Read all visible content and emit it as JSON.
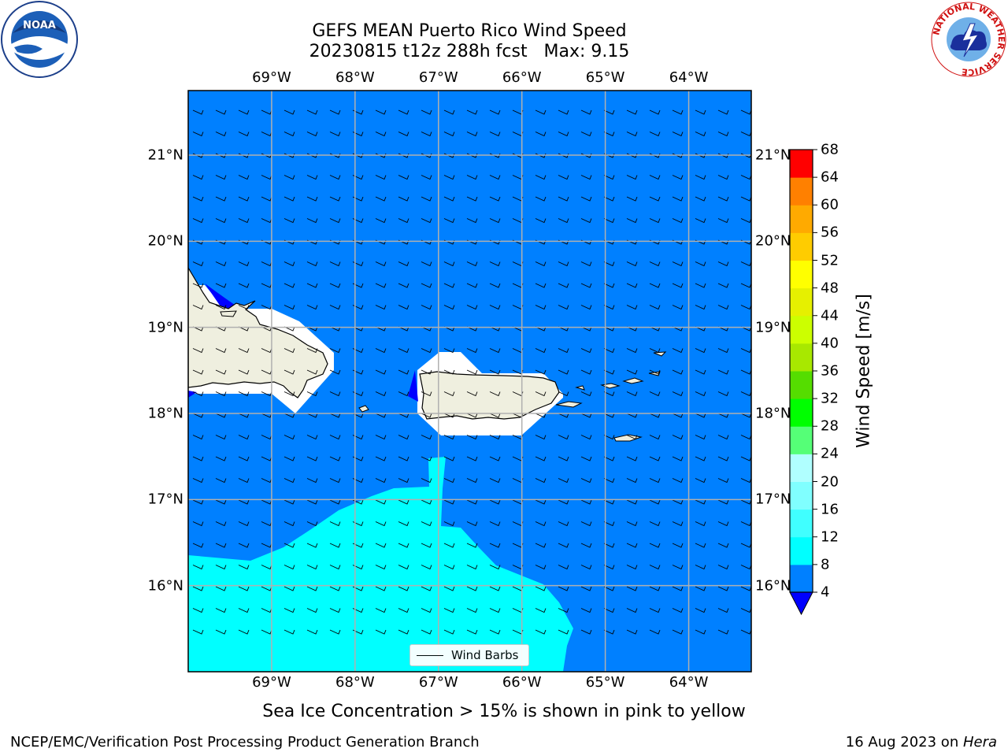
{
  "title": {
    "line1": "GEFS MEAN Puerto Rico Wind Speed",
    "line2": "20230815 t12z 288h fcst   Max: 9.15"
  },
  "axes": {
    "lon_labels": [
      "69°W",
      "68°W",
      "67°W",
      "66°W",
      "65°W",
      "64°W"
    ],
    "lat_labels": [
      "21°N",
      "20°N",
      "19°N",
      "18°N",
      "17°N",
      "16°N"
    ],
    "lon_range": [
      -70.0,
      -63.25
    ],
    "lat_range": [
      15.0,
      21.75
    ],
    "grid": true
  },
  "colorbar": {
    "label": "Wind Speed [m/s]",
    "ticks": [
      "68",
      "64",
      "60",
      "56",
      "52",
      "48",
      "44",
      "40",
      "36",
      "32",
      "28",
      "24",
      "20",
      "16",
      "12",
      "8",
      "4"
    ],
    "levels": [
      4,
      8,
      12,
      16,
      20,
      24,
      28,
      32,
      36,
      40,
      44,
      48,
      52,
      56,
      60,
      64,
      68
    ],
    "colors": [
      "#0080ff",
      "#00ffff",
      "#40ffff",
      "#80ffff",
      "#b0ffff",
      "#55ff77",
      "#00ff00",
      "#55dd00",
      "#a8e800",
      "#ccff00",
      "#e6f000",
      "#ffff00",
      "#ffcc00",
      "#ffaa00",
      "#ff8000",
      "#ff5000",
      "#ff2000",
      "#ff0000"
    ],
    "extend_color": "#0000ff"
  },
  "legend": {
    "label": "Wind Barbs"
  },
  "note": "Sea Ice Concentration > 15% is shown in pink to yellow",
  "footer": {
    "left": "NCEP/EMC/Verification Post Processing Product Generation Branch",
    "right_date": "16 Aug 2023 on ",
    "right_machine": "Hera"
  },
  "logos": {
    "left": "NOAA",
    "right_ring": "NATIONAL WEATHER SERVICE"
  },
  "map_colors": {
    "ocean": "#0080ff",
    "land": "#efefdf",
    "band": "#00ffff",
    "dark": "#0000ff",
    "grid": "#b0b0b0"
  },
  "chart_data": {
    "type": "heatmap",
    "title": "GEFS MEAN Puerto Rico Wind Speed",
    "subtitle": "20230815 t12z 288h fcst   Max: 9.15",
    "colorbar_label": "Wind Speed [m/s]",
    "max_value": 9.15,
    "units": "m/s"
  }
}
